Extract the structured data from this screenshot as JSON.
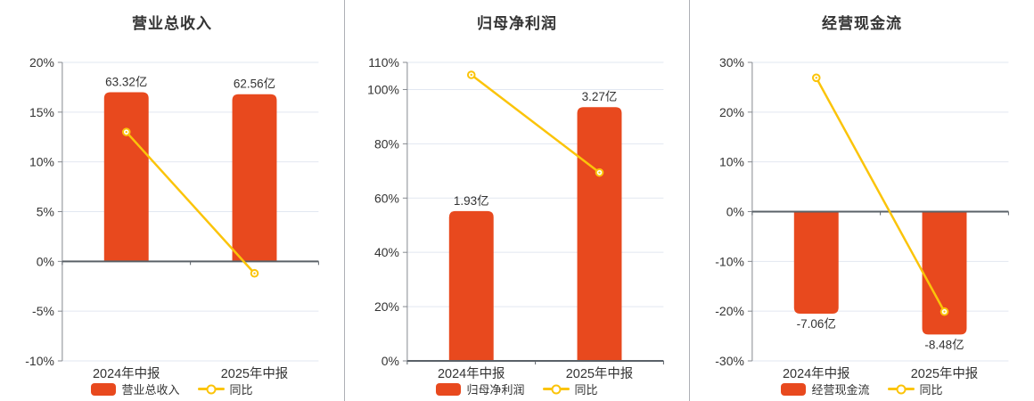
{
  "page": {
    "background": "#ffffff"
  },
  "colors": {
    "bar": "#E8491E",
    "line": "#FBC40A",
    "grid": "#E2E7F1",
    "zero_axis": "#5A6168",
    "y_axis": "#85898F",
    "text": "#333333",
    "divider": "#ADB0B5",
    "marker_fill": "#FFFFFF"
  },
  "chart_data": [
    {
      "key": "revenue",
      "type": "bar-line-combo",
      "title": "营业总收入",
      "categories": [
        "2024年中报",
        "2025年中报"
      ],
      "bar_series": {
        "name": "营业总收入",
        "unit": "亿",
        "values_yi": [
          63.32,
          62.56
        ],
        "labels": [
          "63.32亿",
          "62.56亿"
        ],
        "display_pct": [
          17.0,
          16.8
        ]
      },
      "line_series": {
        "name": "同比",
        "values_pct": [
          13.0,
          -1.2
        ]
      },
      "y_axis": {
        "range_pct": [
          -10,
          20
        ],
        "ticks_pct": [
          20,
          15,
          10,
          5,
          0,
          -5,
          -10
        ],
        "tick_labels": [
          "20%",
          "15%",
          "10%",
          "5%",
          "0%",
          "-5%",
          "-10%"
        ]
      },
      "grid": true,
      "legend_position": "bottom"
    },
    {
      "key": "net-profit",
      "type": "bar-line-combo",
      "title": "归母净利润",
      "categories": [
        "2024年中报",
        "2025年中报"
      ],
      "bar_series": {
        "name": "归母净利润",
        "unit": "亿",
        "values_yi": [
          1.93,
          3.27
        ],
        "labels": [
          "1.93亿",
          "3.27亿"
        ],
        "display_pct": [
          55.2,
          93.5
        ]
      },
      "line_series": {
        "name": "同比",
        "values_pct": [
          105.4,
          69.4
        ]
      },
      "y_axis": {
        "range_pct": [
          0,
          110
        ],
        "ticks_pct": [
          110,
          100,
          80,
          60,
          40,
          20,
          0
        ],
        "tick_labels": [
          "110%",
          "100%",
          "80%",
          "60%",
          "40%",
          "20%",
          "0%"
        ]
      },
      "grid": true,
      "legend_position": "bottom"
    },
    {
      "key": "cash-flow",
      "type": "bar-line-combo",
      "title": "经营现金流",
      "categories": [
        "2024年中报",
        "2025年中报"
      ],
      "bar_series": {
        "name": "经营现金流",
        "unit": "亿",
        "values_yi": [
          -7.06,
          -8.48
        ],
        "labels": [
          "-7.06亿",
          "-8.48亿"
        ],
        "display_pct": [
          -20.5,
          -24.7
        ]
      },
      "line_series": {
        "name": "同比",
        "values_pct": [
          26.9,
          -20.1
        ]
      },
      "y_axis": {
        "range_pct": [
          -30,
          30
        ],
        "ticks_pct": [
          30,
          20,
          10,
          0,
          -10,
          -20,
          -30
        ],
        "tick_labels": [
          "30%",
          "20%",
          "10%",
          "0%",
          "-10%",
          "-20%",
          "-30%"
        ]
      },
      "grid": true,
      "legend_position": "bottom"
    }
  ]
}
